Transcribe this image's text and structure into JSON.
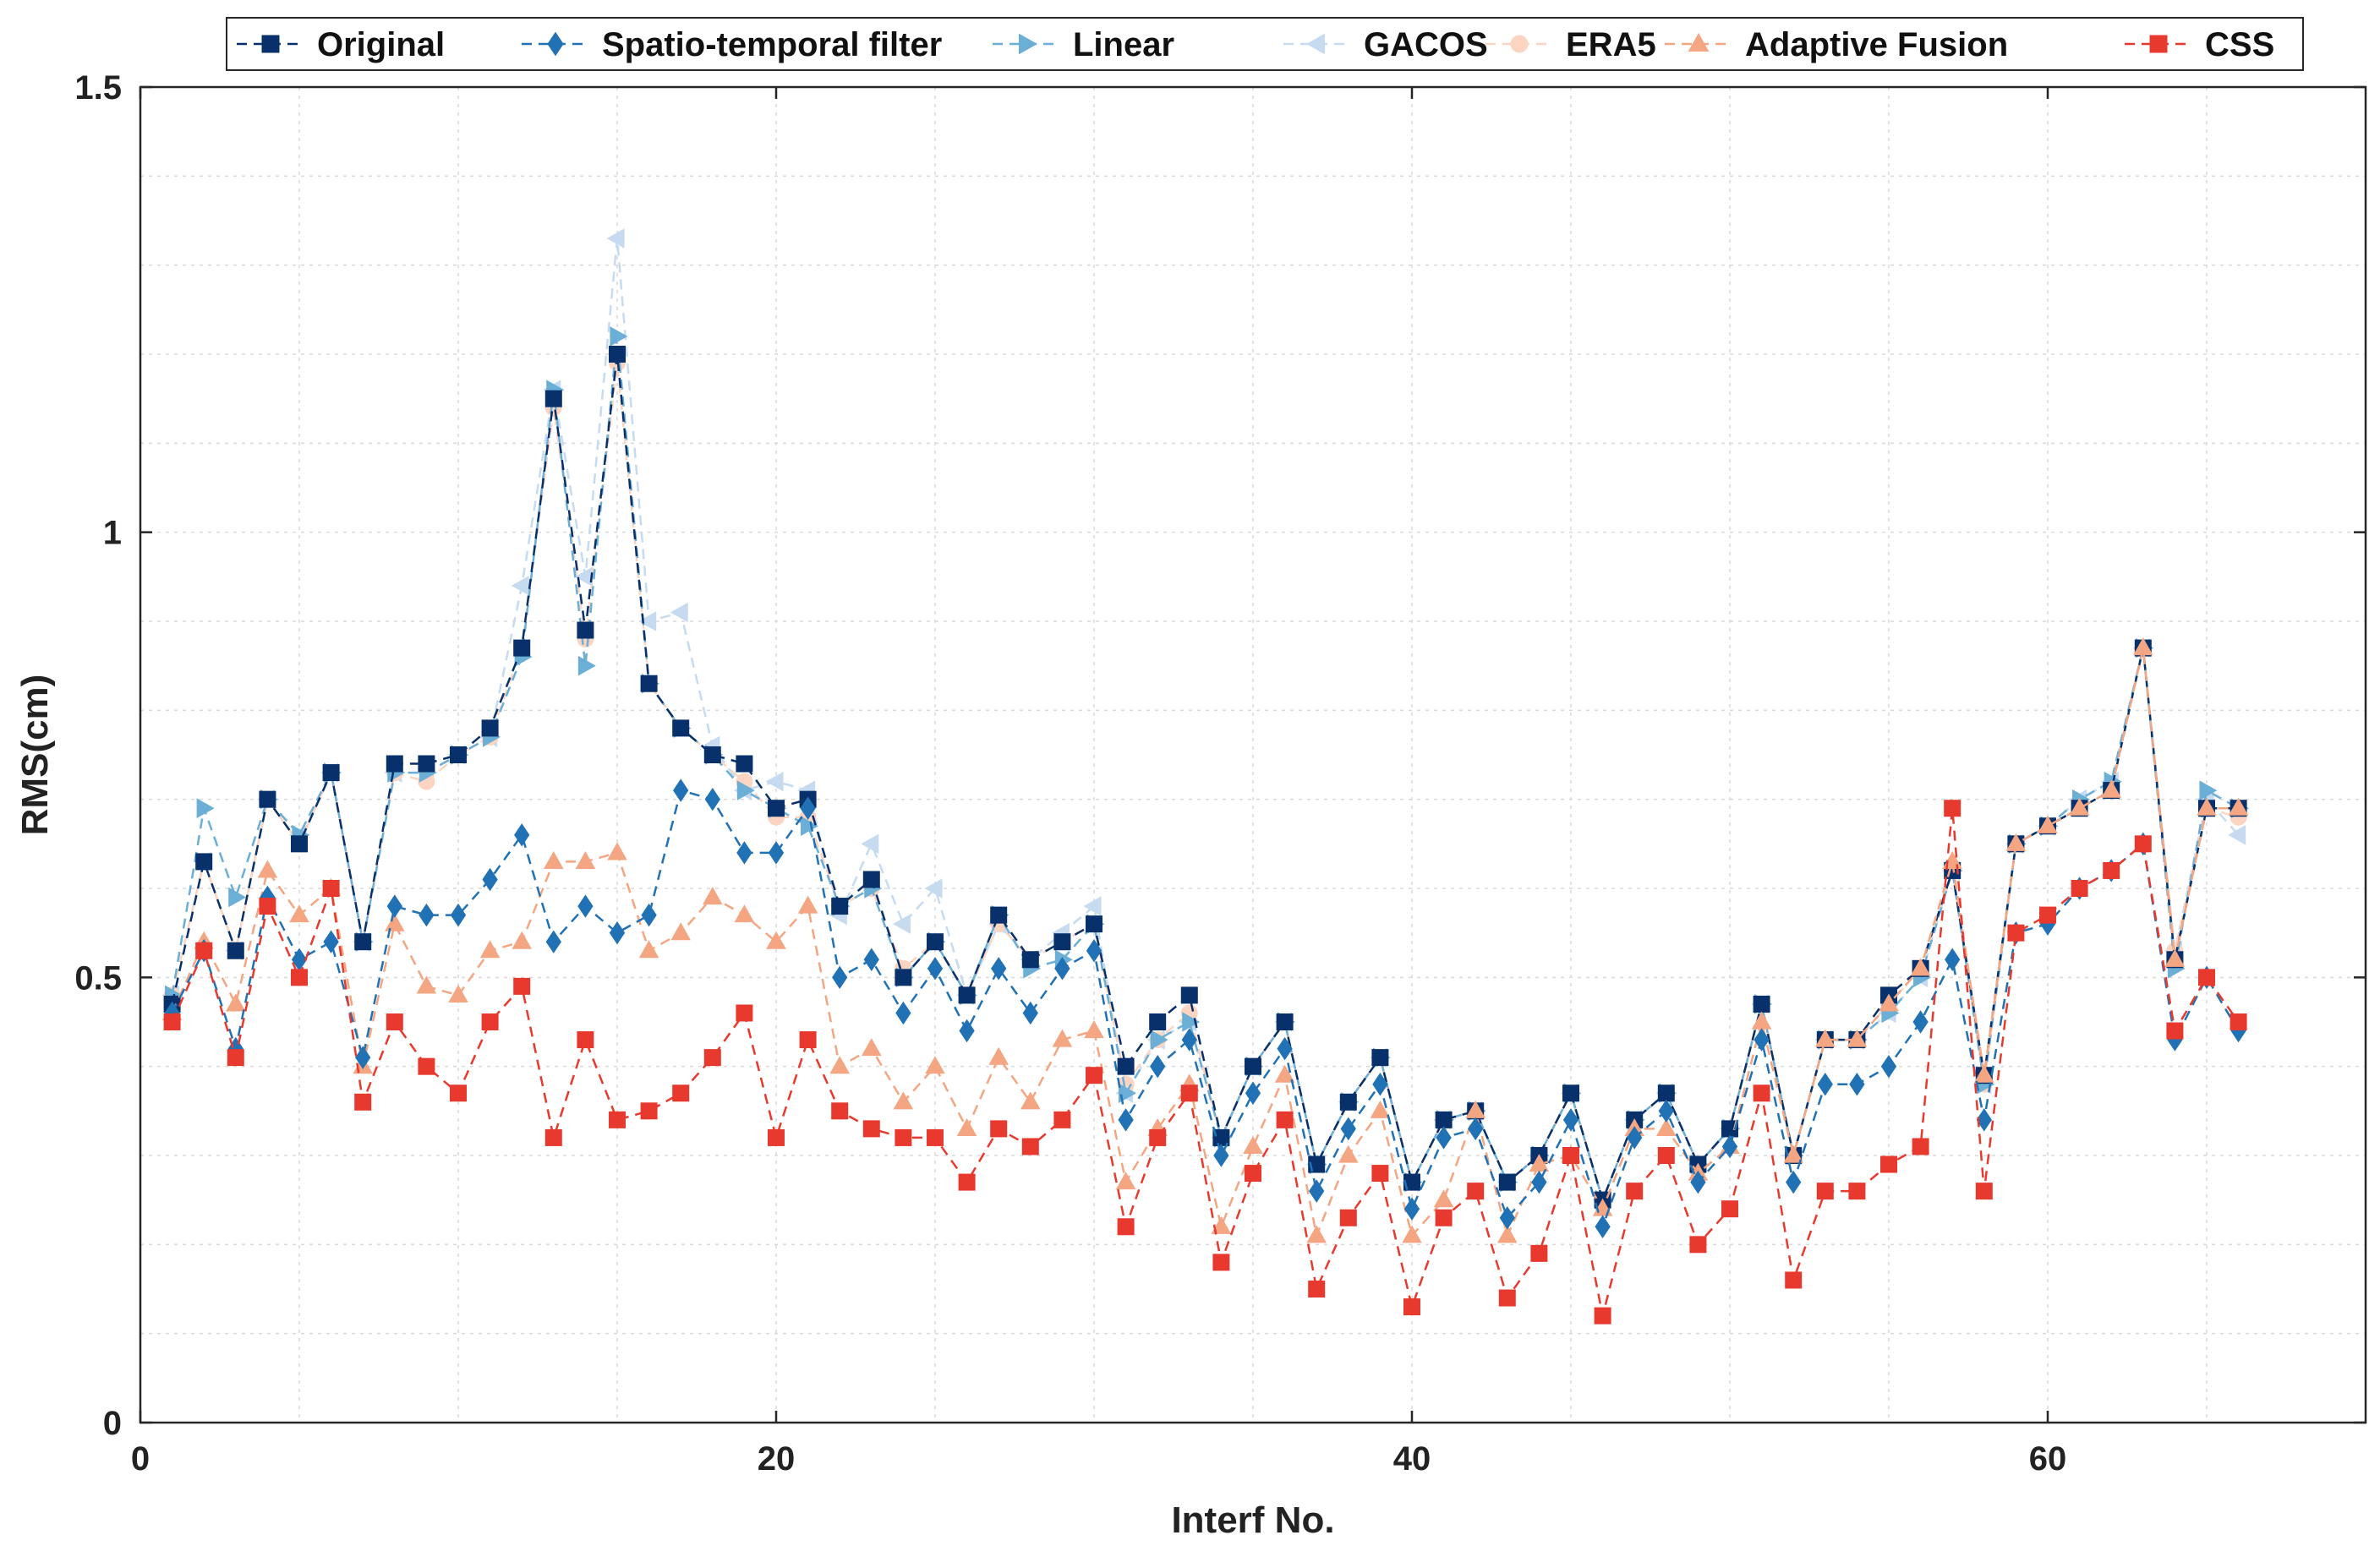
{
  "chart_data": {
    "type": "line",
    "title": "",
    "xlabel": "Interf No.",
    "ylabel": "RMS(cm)",
    "xlim": [
      0,
      70
    ],
    "ylim": [
      0,
      1.5
    ],
    "xticks": [
      0,
      20,
      40,
      60
    ],
    "yticks": [
      0,
      0.5,
      1,
      1.5
    ],
    "xtick_labels": [
      "0",
      "20",
      "40",
      "60"
    ],
    "ytick_labels": [
      "0",
      "0.5",
      "1",
      "1.5"
    ],
    "grid": true,
    "legend_position": "top",
    "x": [
      1,
      2,
      3,
      4,
      5,
      6,
      7,
      8,
      9,
      10,
      11,
      12,
      13,
      14,
      15,
      16,
      17,
      18,
      19,
      20,
      21,
      22,
      23,
      24,
      25,
      26,
      27,
      28,
      29,
      30,
      31,
      32,
      33,
      34,
      35,
      36,
      37,
      38,
      39,
      40,
      41,
      42,
      43,
      44,
      45,
      46,
      47,
      48,
      49,
      50,
      51,
      52,
      53,
      54,
      55,
      56,
      57,
      58,
      59,
      60,
      61,
      62,
      63,
      64,
      65,
      66
    ],
    "series": [
      {
        "name": "Original",
        "color": "#08306b",
        "marker": "square",
        "values": [
          0.47,
          0.63,
          0.53,
          0.7,
          0.65,
          0.73,
          0.54,
          0.74,
          0.74,
          0.75,
          0.78,
          0.87,
          1.15,
          0.89,
          1.2,
          0.83,
          0.78,
          0.75,
          0.74,
          0.69,
          0.7,
          0.58,
          0.61,
          0.5,
          0.54,
          0.48,
          0.57,
          0.52,
          0.54,
          0.56,
          0.4,
          0.45,
          0.48,
          0.32,
          0.4,
          0.45,
          0.29,
          0.36,
          0.41,
          0.27,
          0.34,
          0.35,
          0.27,
          0.3,
          0.37,
          0.25,
          0.34,
          0.37,
          0.29,
          0.33,
          0.47,
          0.3,
          0.43,
          0.43,
          0.48,
          0.51,
          0.62,
          0.39,
          0.65,
          0.67,
          0.69,
          0.71,
          0.87,
          0.52,
          0.69,
          0.69
        ]
      },
      {
        "name": "Spatio-temporal filter",
        "color": "#2171b5",
        "marker": "diamond",
        "values": [
          0.46,
          0.53,
          0.42,
          0.59,
          0.52,
          0.54,
          0.41,
          0.58,
          0.57,
          0.57,
          0.61,
          0.66,
          0.54,
          0.58,
          0.55,
          0.57,
          0.71,
          0.7,
          0.64,
          0.64,
          0.69,
          0.5,
          0.52,
          0.46,
          0.51,
          0.44,
          0.51,
          0.46,
          0.51,
          0.53,
          0.34,
          0.4,
          0.43,
          0.3,
          0.37,
          0.42,
          0.26,
          0.33,
          0.38,
          0.24,
          0.32,
          0.33,
          0.23,
          0.27,
          0.34,
          0.22,
          0.32,
          0.35,
          0.27,
          0.31,
          0.43,
          0.27,
          0.38,
          0.38,
          0.4,
          0.45,
          0.52,
          0.34,
          0.55,
          0.56,
          0.6,
          0.62,
          0.65,
          0.43,
          0.5,
          0.44
        ]
      },
      {
        "name": "Linear",
        "color": "#6baed6",
        "marker": "triangle-right",
        "values": [
          0.48,
          0.69,
          0.59,
          0.7,
          0.66,
          0.73,
          0.54,
          0.73,
          0.73,
          0.75,
          0.77,
          0.86,
          1.16,
          0.85,
          1.22,
          0.83,
          0.78,
          0.75,
          0.71,
          0.69,
          0.67,
          0.58,
          0.6,
          0.5,
          0.54,
          0.48,
          0.57,
          0.51,
          0.52,
          0.56,
          0.37,
          0.43,
          0.45,
          0.32,
          0.4,
          0.45,
          0.29,
          0.36,
          0.41,
          0.27,
          0.34,
          0.35,
          0.27,
          0.3,
          0.37,
          0.25,
          0.34,
          0.37,
          0.29,
          0.33,
          0.47,
          0.3,
          0.43,
          0.43,
          0.46,
          0.5,
          0.62,
          0.38,
          0.65,
          0.67,
          0.7,
          0.72,
          0.87,
          0.51,
          0.71,
          0.69
        ]
      },
      {
        "name": "GACOS",
        "color": "#c6dbef",
        "marker": "triangle-left",
        "values": [
          0.48,
          0.63,
          0.53,
          0.7,
          0.66,
          0.73,
          0.54,
          0.73,
          0.73,
          0.75,
          0.77,
          0.94,
          1.16,
          0.95,
          1.33,
          0.9,
          0.91,
          0.76,
          0.71,
          0.72,
          0.71,
          0.57,
          0.65,
          0.56,
          0.6,
          0.48,
          0.56,
          0.52,
          0.55,
          0.58,
          0.37,
          0.43,
          0.45,
          0.32,
          0.4,
          0.45,
          0.29,
          0.36,
          0.41,
          0.27,
          0.34,
          0.35,
          0.27,
          0.3,
          0.37,
          0.25,
          0.34,
          0.37,
          0.29,
          0.33,
          0.47,
          0.3,
          0.43,
          0.43,
          0.46,
          0.5,
          0.62,
          0.38,
          0.65,
          0.67,
          0.7,
          0.72,
          0.87,
          0.53,
          0.7,
          0.66
        ]
      },
      {
        "name": "ERA5",
        "color": "#fcd5c2",
        "marker": "circle",
        "values": [
          0.48,
          0.63,
          0.53,
          0.7,
          0.65,
          0.73,
          0.54,
          0.73,
          0.72,
          0.75,
          0.77,
          0.87,
          1.14,
          0.88,
          1.19,
          0.83,
          0.78,
          0.75,
          0.72,
          0.68,
          0.68,
          0.58,
          0.6,
          0.51,
          0.54,
          0.48,
          0.56,
          0.52,
          0.54,
          0.56,
          0.38,
          0.43,
          0.46,
          0.32,
          0.4,
          0.45,
          0.29,
          0.36,
          0.41,
          0.27,
          0.34,
          0.35,
          0.27,
          0.3,
          0.37,
          0.25,
          0.34,
          0.37,
          0.29,
          0.33,
          0.47,
          0.3,
          0.43,
          0.43,
          0.47,
          0.51,
          0.62,
          0.38,
          0.65,
          0.67,
          0.69,
          0.71,
          0.87,
          0.53,
          0.69,
          0.68
        ]
      },
      {
        "name": "Adaptive Fusion",
        "color": "#f4a582",
        "marker": "triangle-up",
        "values": [
          0.46,
          0.54,
          0.47,
          0.62,
          0.57,
          0.6,
          0.4,
          0.56,
          0.49,
          0.48,
          0.53,
          0.54,
          0.63,
          0.63,
          0.64,
          0.53,
          0.55,
          0.59,
          0.57,
          0.54,
          0.58,
          0.4,
          0.42,
          0.36,
          0.4,
          0.33,
          0.41,
          0.36,
          0.43,
          0.44,
          0.27,
          0.33,
          0.38,
          0.22,
          0.31,
          0.39,
          0.21,
          0.3,
          0.35,
          0.21,
          0.25,
          0.35,
          0.21,
          0.29,
          0.3,
          0.24,
          0.33,
          0.33,
          0.28,
          0.31,
          0.45,
          0.3,
          0.43,
          0.43,
          0.47,
          0.51,
          0.63,
          0.39,
          0.65,
          0.67,
          0.69,
          0.71,
          0.87,
          0.52,
          0.69,
          0.69
        ]
      },
      {
        "name": "CSS",
        "color": "#e8392e",
        "marker": "square",
        "values": [
          0.45,
          0.53,
          0.41,
          0.58,
          0.5,
          0.6,
          0.36,
          0.45,
          0.4,
          0.37,
          0.45,
          0.49,
          0.32,
          0.43,
          0.34,
          0.35,
          0.37,
          0.41,
          0.46,
          0.32,
          0.43,
          0.35,
          0.33,
          0.32,
          0.32,
          0.27,
          0.33,
          0.31,
          0.34,
          0.39,
          0.22,
          0.32,
          0.37,
          0.18,
          0.28,
          0.34,
          0.15,
          0.23,
          0.28,
          0.13,
          0.23,
          0.26,
          0.14,
          0.19,
          0.3,
          0.12,
          0.26,
          0.3,
          0.2,
          0.24,
          0.37,
          0.16,
          0.26,
          0.26,
          0.29,
          0.31,
          0.69,
          0.26,
          0.55,
          0.57,
          0.6,
          0.62,
          0.65,
          0.44,
          0.5,
          0.45
        ]
      }
    ]
  }
}
